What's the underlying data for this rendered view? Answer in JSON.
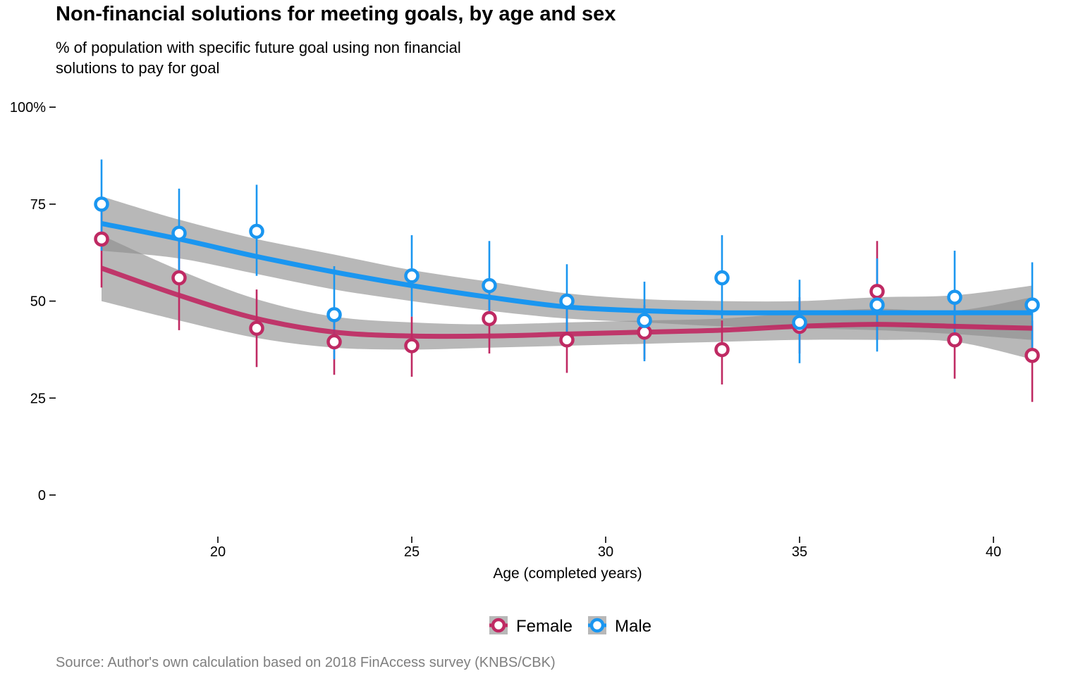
{
  "chart_data": {
    "type": "scatter",
    "title": "Non-financial solutions for meeting goals, by age and sex",
    "subtitle": "% of population with specific future goal using non financial solutions to pay for goal",
    "xlabel": "Age (completed years)",
    "ylabel": "",
    "caption": "Source: Author's own calculation based on 2018 FinAccess survey (KNBS/CBK)",
    "xlim": [
      15.5,
      41.8
    ],
    "ylim": [
      -10,
      100
    ],
    "x_ticks": [
      20,
      25,
      30,
      35,
      40
    ],
    "y_ticks": [
      0,
      25,
      50,
      75,
      100
    ],
    "y_tick_labels": [
      "0",
      "25",
      "50",
      "75",
      "100%"
    ],
    "grid": false,
    "legend_position": "bottom",
    "series": [
      {
        "name": "Female",
        "color": "#bf2a63",
        "x": [
          17,
          19,
          21,
          23,
          25,
          27,
          29,
          31,
          33,
          35,
          37,
          39,
          41
        ],
        "y": [
          66,
          56,
          43,
          39.5,
          38.5,
          45.5,
          40,
          42,
          37.5,
          43.5,
          52.5,
          40,
          36
        ],
        "y_low": [
          53.5,
          42.5,
          33,
          31,
          30.5,
          36.5,
          31.5,
          35,
          28.5,
          36.5,
          40,
          30,
          24
        ],
        "y_high": [
          76,
          67,
          53,
          46,
          46,
          54,
          48,
          49,
          45,
          51,
          65.5,
          50,
          45
        ],
        "smooth_x": [
          17,
          19,
          21,
          23,
          25,
          27,
          29,
          31,
          33,
          35,
          37,
          39,
          41
        ],
        "smooth_y": [
          58.5,
          51.5,
          45.5,
          42,
          41,
          41,
          41.5,
          42,
          42.5,
          43.5,
          44,
          43.5,
          43
        ],
        "smooth_low": [
          50,
          45,
          40.5,
          38,
          37.5,
          38,
          38.5,
          39,
          39.5,
          40,
          40,
          39.5,
          35
        ],
        "smooth_high": [
          67,
          58,
          50.5,
          46,
          44.5,
          44,
          44.5,
          45,
          45.5,
          47,
          48,
          47.5,
          51
        ]
      },
      {
        "name": "Male",
        "color": "#1a96f0",
        "x": [
          17,
          19,
          21,
          23,
          25,
          27,
          29,
          31,
          33,
          35,
          37,
          39,
          41
        ],
        "y": [
          75,
          67.5,
          68,
          46.5,
          56.5,
          54,
          50,
          45,
          56,
          44.5,
          49,
          51,
          49
        ],
        "y_low": [
          63,
          57,
          56.5,
          35,
          46,
          44,
          41,
          34.5,
          45.5,
          34,
          37,
          41,
          38
        ],
        "y_high": [
          86.5,
          79,
          80,
          59,
          67,
          65.5,
          59.5,
          55,
          67,
          55.5,
          61,
          63,
          60
        ],
        "smooth_x": [
          17,
          19,
          21,
          23,
          25,
          27,
          29,
          31,
          33,
          35,
          37,
          39,
          41
        ],
        "smooth_y": [
          70,
          66,
          61.5,
          57.5,
          54,
          51,
          48.5,
          47.5,
          47,
          47,
          47,
          47,
          47
        ],
        "smooth_low": [
          63,
          61,
          57,
          53,
          50,
          47.5,
          45.5,
          44.5,
          43.5,
          43,
          42.5,
          41.5,
          40
        ],
        "smooth_high": [
          77,
          71,
          66,
          62,
          58,
          55,
          52,
          50.5,
          50,
          50,
          51,
          51.5,
          54
        ]
      }
    ]
  }
}
